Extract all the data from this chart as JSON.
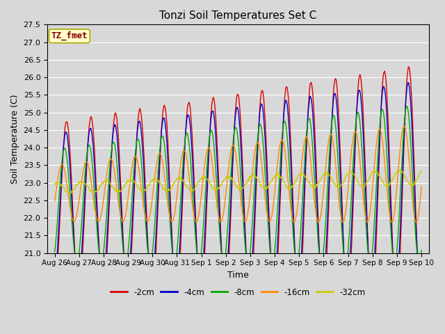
{
  "title": "Tonzi Soil Temperatures Set C",
  "xlabel": "Time",
  "ylabel": "Soil Temperature (C)",
  "ylim": [
    21.0,
    27.5
  ],
  "yticks": [
    21.0,
    21.5,
    22.0,
    22.5,
    23.0,
    23.5,
    24.0,
    24.5,
    25.0,
    25.5,
    26.0,
    26.5,
    27.0,
    27.5
  ],
  "series": [
    {
      "label": "-2cm",
      "color": "#dd0000",
      "linewidth": 1.0
    },
    {
      "label": "-4cm",
      "color": "#0000cc",
      "linewidth": 1.0
    },
    {
      "label": "-8cm",
      "color": "#00aa00",
      "linewidth": 1.0
    },
    {
      "label": "-16cm",
      "color": "#ff8800",
      "linewidth": 1.0
    },
    {
      "label": "-32cm",
      "color": "#cccc00",
      "linewidth": 1.0
    }
  ],
  "xtick_labels": [
    "Aug 26",
    "Aug 27",
    "Aug 28",
    "Aug 29",
    "Aug 30",
    "Aug 31",
    "Sep 1",
    "Sep 2",
    "Sep 3",
    "Sep 4",
    "Sep 5",
    "Sep 6",
    "Sep 7",
    "Sep 8",
    "Sep 9",
    "Sep 10"
  ],
  "annotation_text": "TZ_fmet",
  "annotation_color": "#880000",
  "annotation_bg": "#ffffcc",
  "annotation_edge": "#aaaa00",
  "bg_color": "#d8d8d8",
  "plot_bg_color": "#d8d8d8",
  "grid_color": "#ffffff",
  "figsize": [
    6.4,
    4.8
  ],
  "dpi": 100
}
